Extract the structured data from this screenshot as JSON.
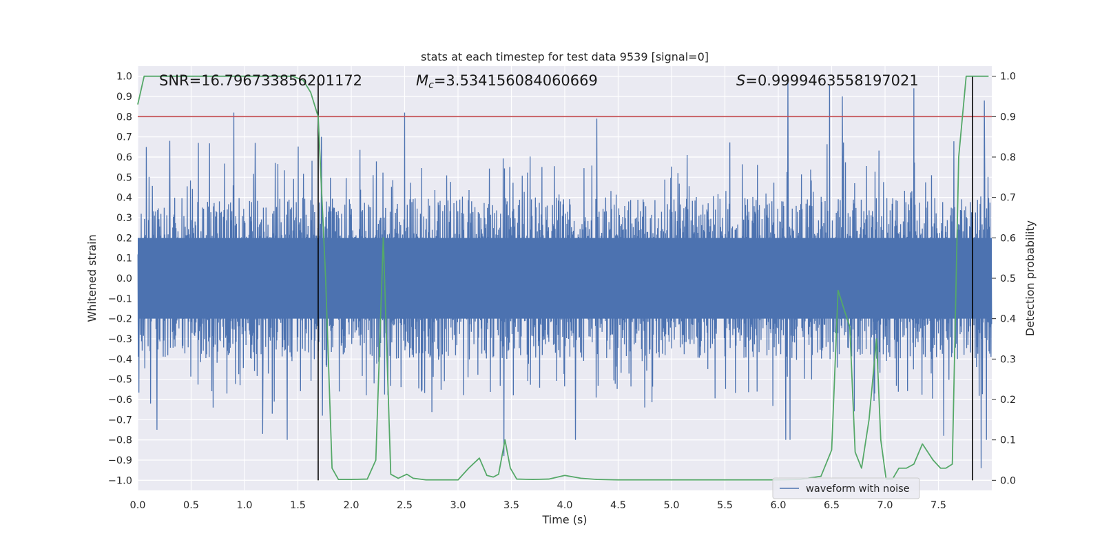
{
  "chart_data": {
    "type": "line",
    "title": "stats at each timestep for test data 9539 [signal=0]",
    "xlabel": "Time (s)",
    "ylabel": "Whitened strain",
    "y2label": "Detection probability",
    "xlim": [
      0,
      8
    ],
    "ylim": [
      -1.05,
      1.05
    ],
    "y2lim": [
      -0.025,
      1.025
    ],
    "xticks": [
      0.0,
      0.5,
      1.0,
      1.5,
      2.0,
      2.5,
      3.0,
      3.5,
      4.0,
      4.5,
      5.0,
      5.5,
      6.0,
      6.5,
      7.0,
      7.5
    ],
    "xtick_labels": [
      "0.0",
      "0.5",
      "1.0",
      "1.5",
      "2.0",
      "2.5",
      "3.0",
      "3.5",
      "4.0",
      "4.5",
      "5.0",
      "5.5",
      "6.0",
      "6.5",
      "7.0",
      "7.5"
    ],
    "yticks": [
      1.0,
      0.9,
      0.8,
      0.7,
      0.6,
      0.5,
      0.4,
      0.3,
      0.2,
      0.1,
      0.0,
      -0.1,
      -0.2,
      -0.3,
      -0.4,
      -0.5,
      -0.6,
      -0.7,
      -0.8,
      -0.9,
      -1.0
    ],
    "ytick_labels": [
      "1.0",
      "0.9",
      "0.8",
      "0.7",
      "0.6",
      "0.5",
      "0.4",
      "0.3",
      "0.2",
      "0.1",
      "0.0",
      "−0.1",
      "−0.2",
      "−0.3",
      "−0.4",
      "−0.5",
      "−0.6",
      "−0.7",
      "−0.8",
      "−0.9",
      "−1.0"
    ],
    "y2ticks": [
      1.0,
      0.9,
      0.8,
      0.7,
      0.6,
      0.5,
      0.4,
      0.3,
      0.2,
      0.1,
      0.0
    ],
    "y2tick_labels": [
      "1.0",
      "0.9",
      "0.8",
      "0.7",
      "0.6",
      "0.5",
      "0.4",
      "0.3",
      "0.2",
      "0.1",
      "0.0"
    ],
    "threshold": {
      "axis": "y2",
      "value": 0.9,
      "color": "#c44e52"
    },
    "vlines": [
      1.69,
      7.82
    ],
    "annotations": {
      "snr": "SNR=16.796733856201172",
      "mc_symbol": "M",
      "mc_sub": "c",
      "mc_value": "=3.534156084060669",
      "s_symbol": "S",
      "s_value": "=0.9999463558197021"
    },
    "legend": {
      "label": "waveform with noise",
      "placement": "lower-right"
    },
    "series": [
      {
        "name": "waveform with noise",
        "color": "#4c72b0",
        "style": "noisy strain, dense band about ±0.35",
        "peaks": [
          {
            "x": 0.08,
            "y": 0.65
          },
          {
            "x": 0.12,
            "y": -0.62
          },
          {
            "x": 0.18,
            "y": -0.75
          },
          {
            "x": 0.3,
            "y": 0.68
          },
          {
            "x": 0.9,
            "y": 0.82
          },
          {
            "x": 1.1,
            "y": 0.67
          },
          {
            "x": 1.17,
            "y": -0.77
          },
          {
            "x": 1.4,
            "y": -0.8
          },
          {
            "x": 1.72,
            "y": 0.7
          },
          {
            "x": 1.73,
            "y": -0.68
          },
          {
            "x": 2.5,
            "y": 0.82
          },
          {
            "x": 3.43,
            "y": -0.88
          },
          {
            "x": 4.1,
            "y": -0.8
          },
          {
            "x": 4.3,
            "y": 0.79
          },
          {
            "x": 6.07,
            "y": -0.8
          },
          {
            "x": 6.09,
            "y": 1.0
          },
          {
            "x": 6.11,
            "y": -0.8
          },
          {
            "x": 6.48,
            "y": 0.96
          },
          {
            "x": 6.6,
            "y": 0.9
          },
          {
            "x": 7.27,
            "y": 0.94
          },
          {
            "x": 7.55,
            "y": -0.78
          },
          {
            "x": 7.9,
            "y": -0.94
          },
          {
            "x": 7.93,
            "y": 0.88
          },
          {
            "x": 7.95,
            "y": -0.8
          }
        ]
      },
      {
        "name": "Detection probability",
        "axis": "y2",
        "color": "#55a868",
        "x": [
          0.0,
          0.06,
          0.12,
          0.3,
          0.6,
          0.9,
          1.2,
          1.45,
          1.55,
          1.62,
          1.69,
          1.76,
          1.82,
          1.88,
          2.0,
          2.15,
          2.23,
          2.3,
          2.37,
          2.44,
          2.52,
          2.58,
          2.7,
          2.9,
          3.0,
          3.1,
          3.2,
          3.27,
          3.33,
          3.38,
          3.44,
          3.49,
          3.55,
          3.7,
          3.85,
          4.0,
          4.15,
          4.3,
          4.5,
          4.8,
          5.0,
          5.2,
          5.4,
          5.6,
          5.8,
          6.0,
          6.2,
          6.4,
          6.5,
          6.56,
          6.62,
          6.67,
          6.72,
          6.78,
          6.85,
          6.92,
          6.96,
          7.01,
          7.07,
          7.13,
          7.2,
          7.27,
          7.35,
          7.45,
          7.52,
          7.57,
          7.63,
          7.69,
          7.76,
          7.82,
          7.86,
          7.88,
          7.92,
          7.97
        ],
        "y": [
          0.93,
          1.0,
          1.0,
          1.0,
          1.0,
          1.0,
          1.0,
          1.0,
          0.99,
          0.96,
          0.9,
          0.5,
          0.03,
          0.002,
          0.002,
          0.003,
          0.05,
          0.6,
          0.015,
          0.005,
          0.015,
          0.005,
          0.001,
          0.001,
          0.001,
          0.03,
          0.055,
          0.012,
          0.008,
          0.015,
          0.1,
          0.03,
          0.003,
          0.002,
          0.003,
          0.012,
          0.005,
          0.002,
          0.001,
          0.001,
          0.001,
          0.001,
          0.001,
          0.001,
          0.001,
          0.001,
          0.002,
          0.01,
          0.075,
          0.47,
          0.42,
          0.38,
          0.07,
          0.03,
          0.15,
          0.35,
          0.1,
          0.003,
          0.003,
          0.03,
          0.03,
          0.04,
          0.09,
          0.05,
          0.03,
          0.03,
          0.04,
          0.8,
          1.0,
          1.0,
          1.0,
          1.0,
          1.0,
          1.0
        ]
      }
    ]
  }
}
